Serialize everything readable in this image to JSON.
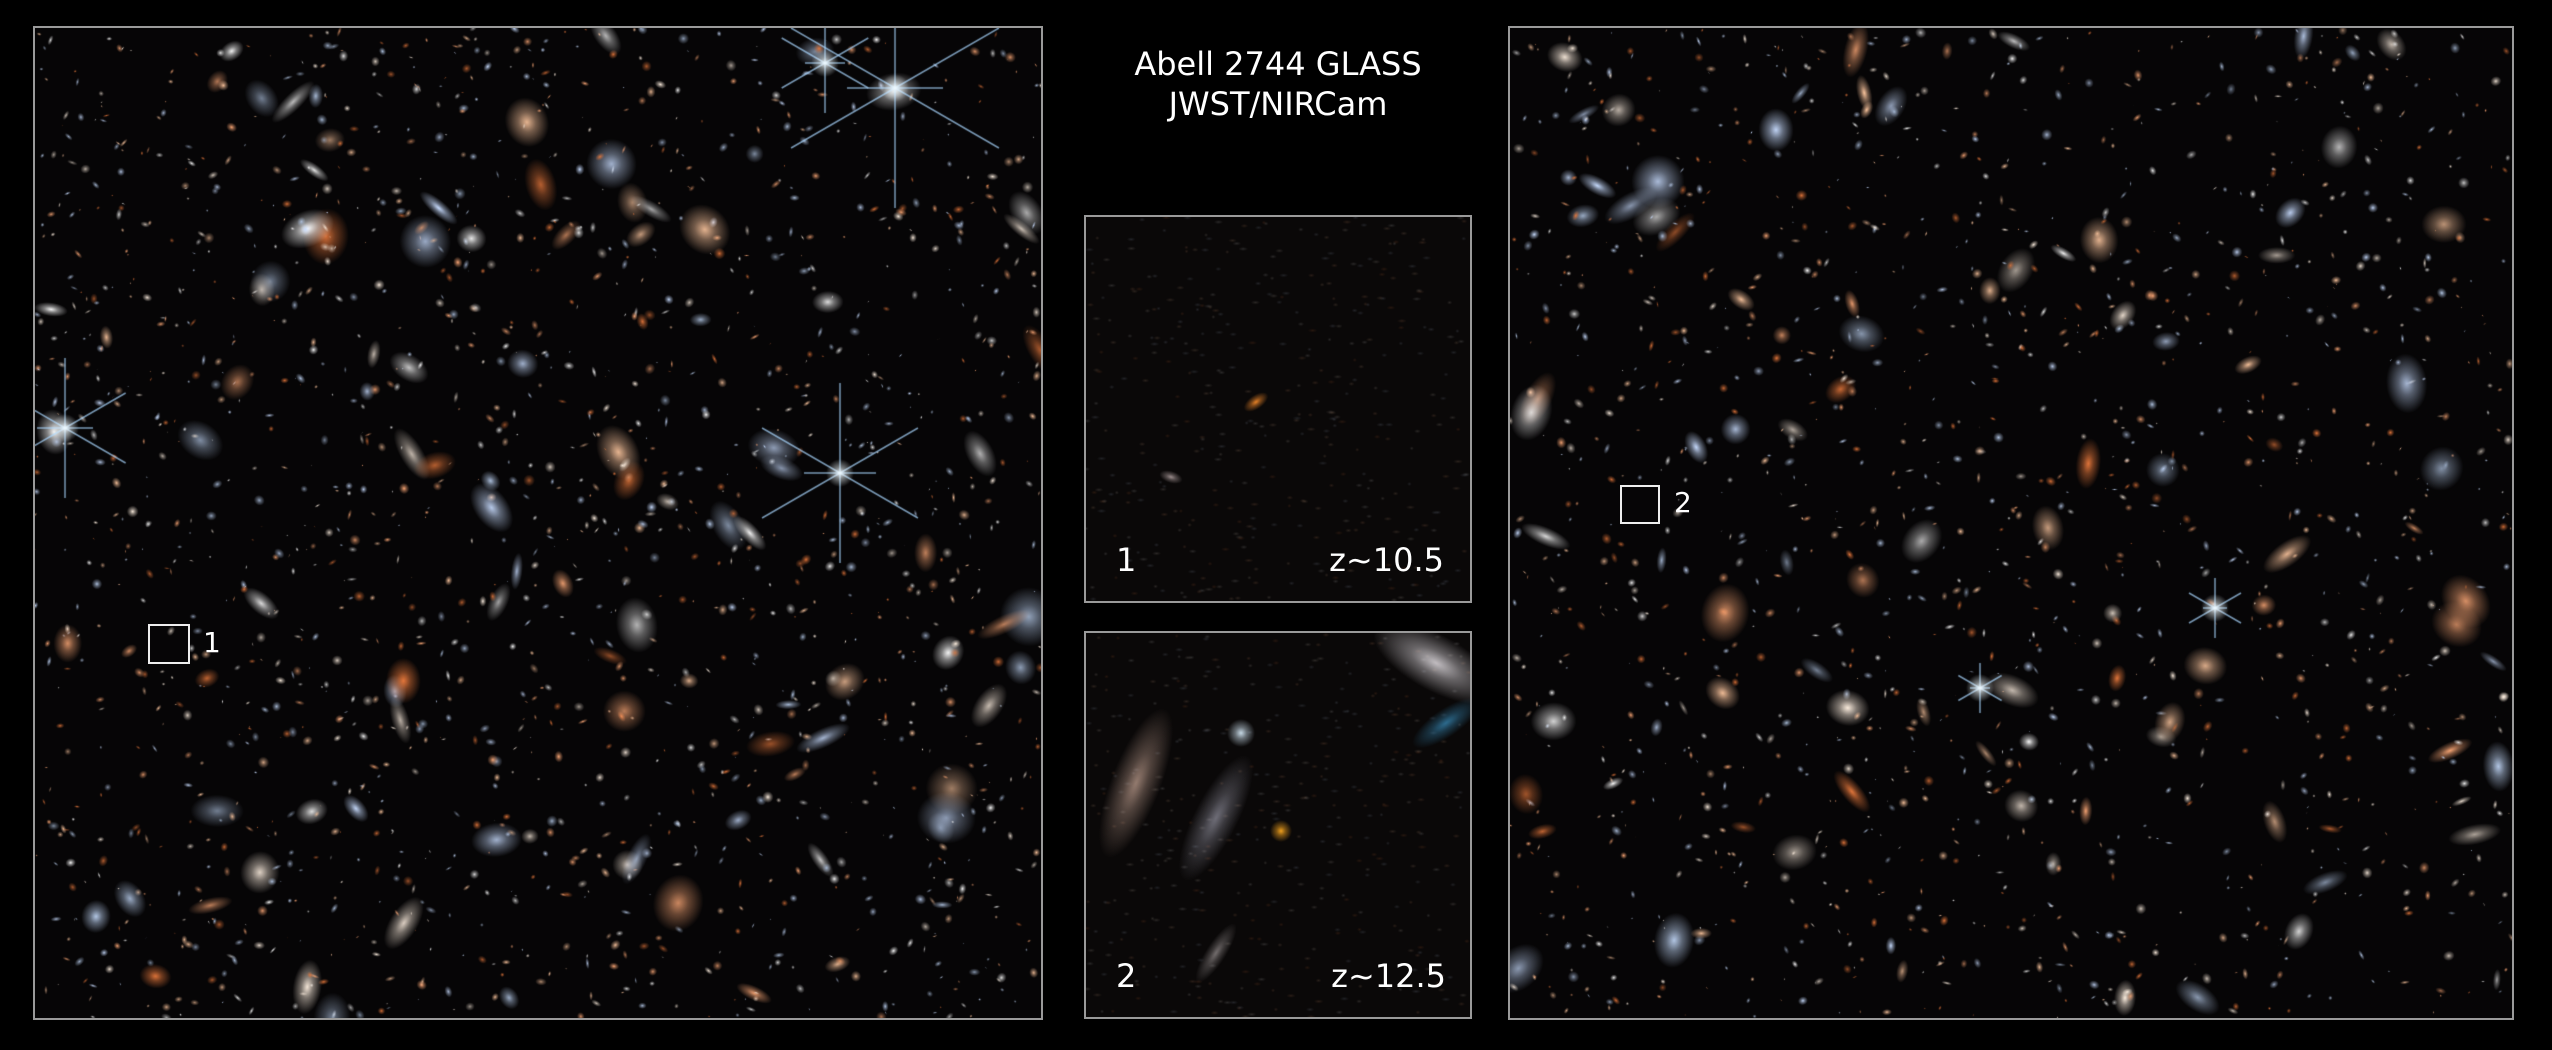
{
  "title": {
    "line1": "Abell 2744 GLASS",
    "line2": "JWST/NIRCam"
  },
  "left_panel": {
    "marker_label": "1"
  },
  "right_panel": {
    "marker_label": "2"
  },
  "insets": [
    {
      "label": "1",
      "redshift": "z~10.5"
    },
    {
      "label": "2",
      "redshift": "z~12.5"
    }
  ],
  "colors": {
    "background": "#000000",
    "frame": "#9a9a9a",
    "text": "#ffffff"
  }
}
